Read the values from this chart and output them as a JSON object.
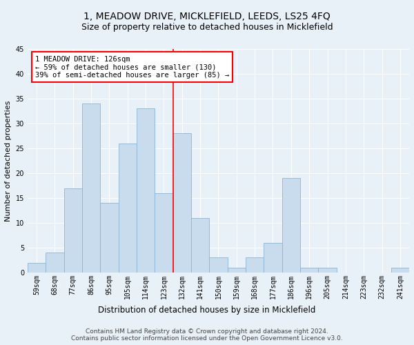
{
  "title": "1, MEADOW DRIVE, MICKLEFIELD, LEEDS, LS25 4FQ",
  "subtitle": "Size of property relative to detached houses in Micklefield",
  "xlabel": "Distribution of detached houses by size in Micklefield",
  "ylabel": "Number of detached properties",
  "categories": [
    "59sqm",
    "68sqm",
    "77sqm",
    "86sqm",
    "95sqm",
    "105sqm",
    "114sqm",
    "123sqm",
    "132sqm",
    "141sqm",
    "150sqm",
    "159sqm",
    "168sqm",
    "177sqm",
    "186sqm",
    "196sqm",
    "205sqm",
    "214sqm",
    "223sqm",
    "232sqm",
    "241sqm"
  ],
  "values": [
    2,
    4,
    17,
    34,
    14,
    26,
    33,
    16,
    28,
    11,
    3,
    1,
    3,
    6,
    19,
    1,
    1,
    0,
    0,
    0,
    1
  ],
  "bar_color": "#c9dcee",
  "bar_edge_color": "#8ab4d4",
  "vline_color": "red",
  "vline_x": 7.5,
  "annotation_text": "1 MEADOW DRIVE: 126sqm\n← 59% of detached houses are smaller (130)\n39% of semi-detached houses are larger (85) →",
  "annotation_box_color": "white",
  "annotation_box_edge_color": "red",
  "ylim": [
    0,
    45
  ],
  "yticks": [
    0,
    5,
    10,
    15,
    20,
    25,
    30,
    35,
    40,
    45
  ],
  "footer_line1": "Contains HM Land Registry data © Crown copyright and database right 2024.",
  "footer_line2": "Contains public sector information licensed under the Open Government Licence v3.0.",
  "bg_color": "#e8f0f8",
  "plot_bg_color": "#e8f0f8",
  "grid_color": "white",
  "title_fontsize": 10,
  "subtitle_fontsize": 9,
  "xlabel_fontsize": 8.5,
  "ylabel_fontsize": 8,
  "tick_fontsize": 7,
  "annotation_fontsize": 7.5,
  "footer_fontsize": 6.5
}
